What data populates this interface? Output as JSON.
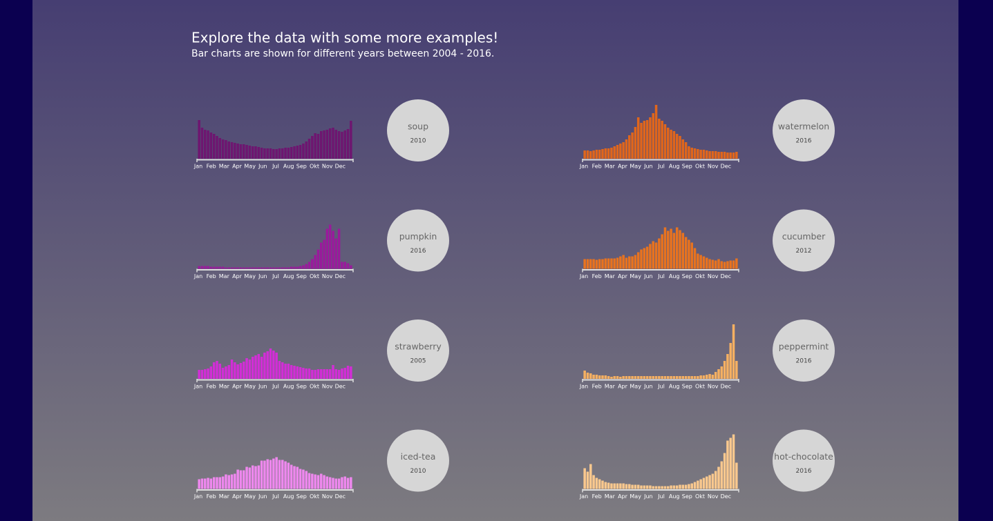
{
  "header": {
    "title": "Explore the data with some more examples!",
    "subtitle": "Bar charts are shown for different years between 2004 - 2016."
  },
  "chart_data": [
    {
      "type": "bar",
      "title": "soup",
      "subtitle": "2010",
      "x_labels": [
        "Jan",
        "Feb",
        "Mar",
        "Apr",
        "May",
        "Jun",
        "Jul",
        "Aug",
        "Sep",
        "Okt",
        "Nov",
        "Dec"
      ],
      "color": "#6e1670",
      "ylim": [
        0,
        80
      ],
      "values": [
        56,
        45,
        42,
        41,
        38,
        36,
        33,
        30,
        28,
        27,
        25,
        24,
        23,
        22,
        21,
        21,
        20,
        19,
        18,
        18,
        17,
        16,
        15,
        15,
        15,
        14,
        14,
        15,
        15,
        16,
        16,
        17,
        18,
        19,
        20,
        22,
        25,
        29,
        33,
        37,
        36,
        40,
        41,
        42,
        44,
        45,
        42,
        40,
        39,
        41,
        43,
        55
      ]
    },
    {
      "type": "bar",
      "title": "pumpkin",
      "subtitle": "2016",
      "x_labels": [
        "Jan",
        "Feb",
        "Mar",
        "Apr",
        "May",
        "Jun",
        "Jul",
        "Aug",
        "Sep",
        "Okt",
        "Nov",
        "Dec"
      ],
      "color": "#9a1a9c",
      "ylim": [
        0,
        80
      ],
      "values": [
        4,
        4,
        4,
        4,
        3,
        3,
        3,
        3,
        3,
        2,
        2,
        2,
        2,
        2,
        2,
        2,
        2,
        2,
        2,
        2,
        2,
        2,
        2,
        2,
        2,
        2,
        2,
        2,
        2,
        2,
        2,
        3,
        3,
        3,
        4,
        5,
        7,
        10,
        14,
        20,
        28,
        38,
        42,
        58,
        64,
        55,
        44,
        58,
        10,
        10,
        8,
        5
      ]
    },
    {
      "type": "bar",
      "title": "strawberry",
      "subtitle": "2005",
      "x_labels": [
        "Jan",
        "Feb",
        "Mar",
        "Apr",
        "May",
        "Jun",
        "Jul",
        "Aug",
        "Sep",
        "Okt",
        "Nov",
        "Dec"
      ],
      "color": "#d22ed6",
      "ylim": [
        0,
        80
      ],
      "values": [
        13,
        13,
        14,
        15,
        18,
        24,
        26,
        22,
        16,
        18,
        20,
        28,
        24,
        21,
        23,
        25,
        30,
        28,
        32,
        34,
        36,
        32,
        38,
        40,
        44,
        41,
        38,
        26,
        24,
        22,
        22,
        20,
        19,
        18,
        17,
        16,
        15,
        15,
        13,
        13,
        14,
        14,
        14,
        14,
        14,
        20,
        14,
        13,
        15,
        16,
        19,
        18
      ]
    },
    {
      "type": "bar",
      "title": "iced-tea",
      "subtitle": "2010",
      "x_labels": [
        "Jan",
        "Feb",
        "Mar",
        "Apr",
        "May",
        "Jun",
        "Jul",
        "Aug",
        "Sep",
        "Okt",
        "Nov",
        "Dec"
      ],
      "color": "#ee88ee",
      "ylim": [
        0,
        80
      ],
      "values": [
        14,
        15,
        15,
        16,
        15,
        17,
        17,
        17,
        18,
        21,
        20,
        21,
        22,
        28,
        27,
        27,
        32,
        31,
        34,
        33,
        34,
        41,
        41,
        43,
        42,
        44,
        46,
        42,
        42,
        40,
        38,
        35,
        33,
        32,
        29,
        28,
        26,
        23,
        22,
        21,
        20,
        22,
        20,
        18,
        17,
        16,
        15,
        15,
        17,
        18,
        16,
        17
      ]
    },
    {
      "type": "bar",
      "title": "watermelon",
      "subtitle": "2016",
      "x_labels": [
        "Jan",
        "Feb",
        "Mar",
        "Apr",
        "May",
        "Jun",
        "Jul",
        "Aug",
        "Sep",
        "Okt",
        "Nov",
        "Dec"
      ],
      "color": "#e0661c",
      "ylim": [
        0,
        80
      ],
      "values": [
        12,
        12,
        11,
        12,
        13,
        13,
        14,
        15,
        15,
        16,
        18,
        20,
        22,
        24,
        28,
        34,
        38,
        46,
        60,
        52,
        55,
        56,
        60,
        66,
        78,
        58,
        55,
        50,
        45,
        42,
        40,
        36,
        33,
        28,
        24,
        18,
        16,
        15,
        14,
        13,
        13,
        12,
        11,
        11,
        11,
        10,
        10,
        10,
        9,
        9,
        9,
        10
      ]
    },
    {
      "type": "bar",
      "title": "cucumber",
      "subtitle": "2012",
      "x_labels": [
        "Jan",
        "Feb",
        "Mar",
        "Apr",
        "May",
        "Jun",
        "Jul",
        "Aug",
        "Sep",
        "Okt",
        "Nov",
        "Dec"
      ],
      "color": "#e8731f",
      "ylim": [
        0,
        80
      ],
      "values": [
        14,
        14,
        14,
        14,
        13,
        14,
        14,
        15,
        15,
        15,
        15,
        16,
        18,
        20,
        16,
        18,
        18,
        20,
        24,
        28,
        30,
        32,
        36,
        40,
        38,
        44,
        50,
        60,
        55,
        58,
        52,
        60,
        56,
        52,
        46,
        42,
        38,
        30,
        22,
        20,
        18,
        16,
        14,
        13,
        12,
        14,
        11,
        10,
        11,
        12,
        12,
        15
      ]
    },
    {
      "type": "bar",
      "title": "peppermint",
      "subtitle": "2016",
      "x_labels": [
        "Jan",
        "Feb",
        "Mar",
        "Apr",
        "May",
        "Jun",
        "Jul",
        "Aug",
        "Sep",
        "Okt",
        "Nov",
        "Dec"
      ],
      "color": "#f5b062",
      "ylim": [
        0,
        80
      ],
      "values": [
        12,
        9,
        8,
        6,
        6,
        5,
        5,
        5,
        4,
        3,
        4,
        4,
        3,
        4,
        4,
        4,
        4,
        4,
        4,
        4,
        4,
        4,
        4,
        4,
        4,
        4,
        4,
        4,
        4,
        4,
        4,
        4,
        4,
        4,
        4,
        4,
        4,
        4,
        4,
        5,
        5,
        6,
        7,
        6,
        10,
        14,
        18,
        26,
        36,
        52,
        79,
        26
      ]
    },
    {
      "type": "bar",
      "title": "hot-chocolate",
      "subtitle": "2016",
      "x_labels": [
        "Jan",
        "Feb",
        "Mar",
        "Apr",
        "May",
        "Jun",
        "Jul",
        "Aug",
        "Sep",
        "Okt",
        "Nov",
        "Dec"
      ],
      "color": "#f9c88e",
      "ylim": [
        0,
        80
      ],
      "values": [
        30,
        25,
        36,
        20,
        16,
        14,
        12,
        10,
        9,
        8,
        8,
        8,
        8,
        8,
        7,
        7,
        6,
        6,
        6,
        5,
        5,
        5,
        5,
        4,
        4,
        4,
        4,
        4,
        4,
        5,
        5,
        5,
        6,
        6,
        6,
        7,
        8,
        10,
        12,
        14,
        16,
        18,
        20,
        22,
        26,
        32,
        40,
        52,
        70,
        74,
        79,
        38
      ]
    }
  ]
}
